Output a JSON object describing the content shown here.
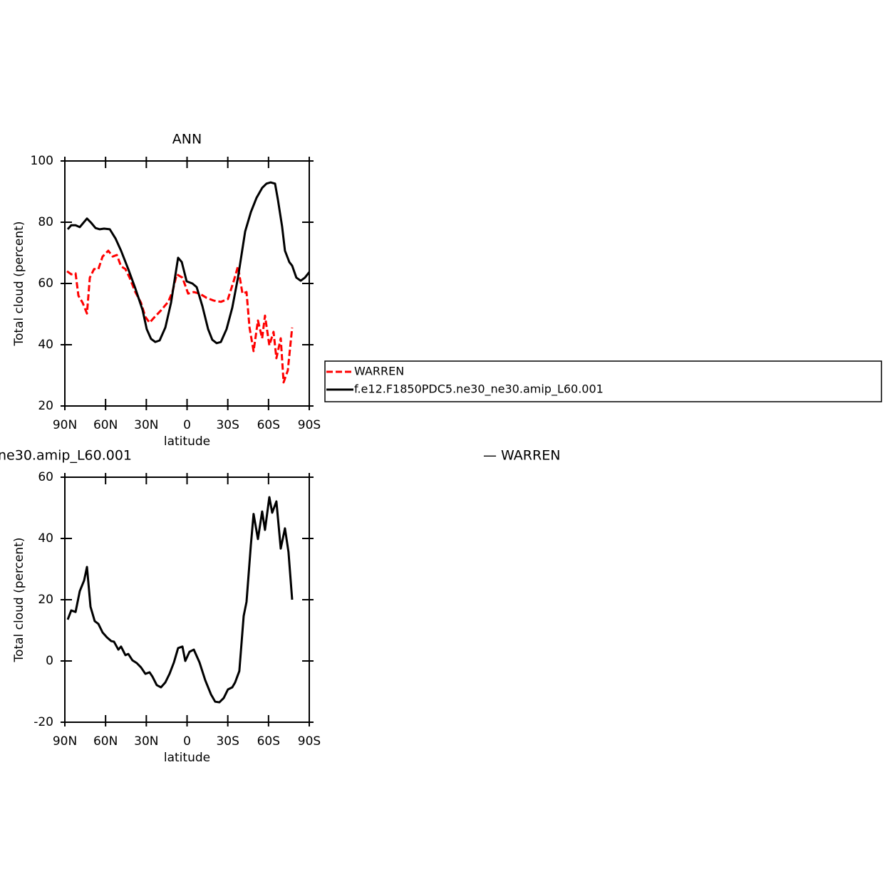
{
  "chart_data": [
    {
      "type": "line",
      "title": "ANN",
      "xlabel": "latitude",
      "ylabel": "Total cloud (percent)",
      "xlim": [
        90,
        -90
      ],
      "xticks": [
        {
          "value": 90,
          "label": "90N"
        },
        {
          "value": 60,
          "label": "60N"
        },
        {
          "value": 30,
          "label": "30N"
        },
        0,
        {
          "value": -30,
          "label": "30S"
        },
        {
          "value": -60,
          "label": "60S"
        },
        {
          "value": -90,
          "label": "90S"
        }
      ],
      "ylim": [
        20,
        100
      ],
      "yticks": [
        20,
        40,
        60,
        80,
        100
      ],
      "legend": "right",
      "series": [
        {
          "name": "WARREN",
          "color": "#ff0000",
          "dash": true,
          "x": [
            88.4,
            85.3,
            82.1,
            80,
            76.9,
            73.7,
            71.6,
            68.5,
            65.3,
            62.2,
            58,
            54.8,
            51.7,
            48.6,
            45.4,
            42.3,
            38.1,
            33.9,
            30.7,
            27.6,
            24.4,
            19.2,
            13.9,
            10.8,
            7.6,
            3.4,
            -0.8,
            -5,
            -9.2,
            -14.4,
            -19.7,
            -24.9,
            -30.1,
            -34.3,
            -37.5,
            -40.8,
            -43.8,
            -46,
            -49,
            -52.2,
            -55.3,
            -57.4,
            -60.6,
            -63.7,
            -65.8,
            -69,
            -71.1,
            -74.2,
            -77.4
          ],
          "values": [
            64,
            63,
            63.3,
            56,
            53.7,
            50.2,
            61.9,
            64.7,
            64.7,
            68.8,
            70.7,
            68.8,
            69.3,
            65.6,
            64.7,
            61.9,
            57.2,
            53.7,
            49.1,
            47.2,
            48.8,
            51.2,
            54,
            57.2,
            63,
            61.9,
            56.7,
            57.2,
            56.7,
            55.3,
            54.4,
            54,
            54.9,
            60.7,
            65.6,
            56.7,
            57.2,
            45.6,
            37.9,
            47.9,
            42.1,
            49.5,
            39.8,
            44.2,
            35.6,
            42.1,
            27.7,
            31.6,
            45.6
          ]
        },
        {
          "name": "f.e12.F1850PDC5.ne30_ne30.amip_L60.001",
          "color": "#000000",
          "dash": false,
          "x": [
            87.9,
            85.3,
            82.1,
            79,
            73.7,
            70.6,
            67.4,
            64.3,
            61.1,
            56.9,
            52.7,
            48.6,
            43.3,
            38.1,
            32.8,
            29.7,
            26.5,
            23.4,
            20.2,
            16,
            11.8,
            6.6,
            3.9,
            0.3,
            -3.9,
            -7.1,
            -11.3,
            -15.5,
            -18.6,
            -21.8,
            -24.9,
            -29.1,
            -33.3,
            -37.5,
            -42.8,
            -47,
            -51.1,
            -55.3,
            -58.5,
            -61.6,
            -64.8,
            -66.9,
            -70,
            -72.1,
            -75.3,
            -77.4,
            -80.5,
            -83.7,
            -86.8,
            -90
          ],
          "values": [
            77.7,
            79,
            79,
            78.4,
            81.2,
            79.8,
            78.1,
            77.7,
            77.9,
            77.7,
            74.7,
            70.7,
            64.7,
            58.4,
            51.4,
            45.1,
            41.9,
            40.9,
            41.4,
            45.6,
            53.7,
            68.4,
            67,
            60.7,
            60,
            58.8,
            52.6,
            45.1,
            41.6,
            40.5,
            40.9,
            45.1,
            52.1,
            61.9,
            77,
            83.3,
            87.9,
            91.2,
            92.6,
            93,
            92.6,
            87.4,
            78.6,
            70.7,
            67,
            65.8,
            61.9,
            60.9,
            61.9,
            63.7
          ]
        }
      ]
    },
    {
      "type": "line",
      "title": "ne30.amip_L60.001",
      "title_right": "— WARREN",
      "xlabel": "latitude",
      "ylabel": "Total cloud (percent)",
      "xlim": [
        90,
        -90
      ],
      "xticks": [
        {
          "value": 90,
          "label": "90N"
        },
        {
          "value": 60,
          "label": "60N"
        },
        {
          "value": 30,
          "label": "30N"
        },
        0,
        {
          "value": -30,
          "label": "30S"
        },
        {
          "value": -60,
          "label": "60S"
        },
        {
          "value": -90,
          "label": "90S"
        }
      ],
      "ylim": [
        -20,
        60
      ],
      "yticks": [
        -20,
        0,
        20,
        40,
        60
      ],
      "series": [
        {
          "color": "#000000",
          "dash": false,
          "x": [
            87.9,
            85.3,
            82.1,
            79,
            75.8,
            73.7,
            71.1,
            68,
            65.3,
            62.2,
            59,
            55.9,
            53.8,
            50.6,
            48.6,
            45.4,
            43.3,
            40.2,
            37,
            33.9,
            30.7,
            27.6,
            25.5,
            22.3,
            19.2,
            16,
            12.9,
            9.7,
            6.6,
            3.4,
            1.3,
            -1.8,
            -5,
            -9.2,
            -13.4,
            -17.6,
            -20.7,
            -23.8,
            -27,
            -30.1,
            -33.3,
            -35.4,
            -38.5,
            -41.7,
            -43.8,
            -47,
            -49,
            -52.2,
            -55.3,
            -57.4,
            -60.6,
            -62.7,
            -65.8,
            -69,
            -72.1,
            -74.7,
            -77.4
          ],
          "values": [
            13.5,
            16.5,
            16,
            22.8,
            26.3,
            30.7,
            17.7,
            13,
            12.1,
            9.3,
            7.7,
            6.5,
            6.3,
            3.7,
            4.7,
            1.9,
            2.3,
            0.2,
            -0.7,
            -2.1,
            -4.2,
            -3.7,
            -5.1,
            -7.9,
            -8.6,
            -7,
            -4.2,
            -0.5,
            4.2,
            4.7,
            0,
            3,
            3.7,
            -0.5,
            -6.3,
            -10.9,
            -13.3,
            -13.5,
            -12.1,
            -9.3,
            -8.6,
            -7,
            -3.3,
            14.7,
            19.3,
            37.9,
            48,
            39.8,
            48.8,
            42.8,
            53.5,
            48.4,
            52.1,
            36.7,
            43.3,
            35.6,
            20
          ]
        }
      ]
    }
  ]
}
